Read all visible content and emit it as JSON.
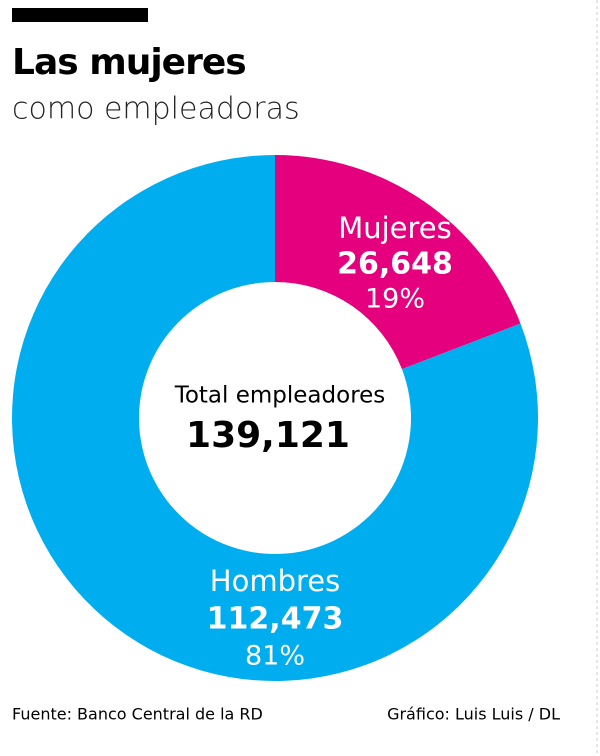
{
  "chart_data": {
    "type": "donut",
    "title": "Las mujeres",
    "subtitle": "como empleadoras",
    "categories": [
      "Mujeres",
      "Hombres"
    ],
    "values": [
      26648,
      112473
    ],
    "value_labels": [
      "26,648",
      "112,473"
    ],
    "percent_labels": [
      "19%",
      "81%"
    ],
    "colors": [
      "#e5007d",
      "#00aeef"
    ],
    "center_title": "Total empleadores",
    "center_value": "139,121",
    "source": "Fuente: Banco Central de la RD",
    "credit": "Gráfico: Luis Luis / DL"
  }
}
